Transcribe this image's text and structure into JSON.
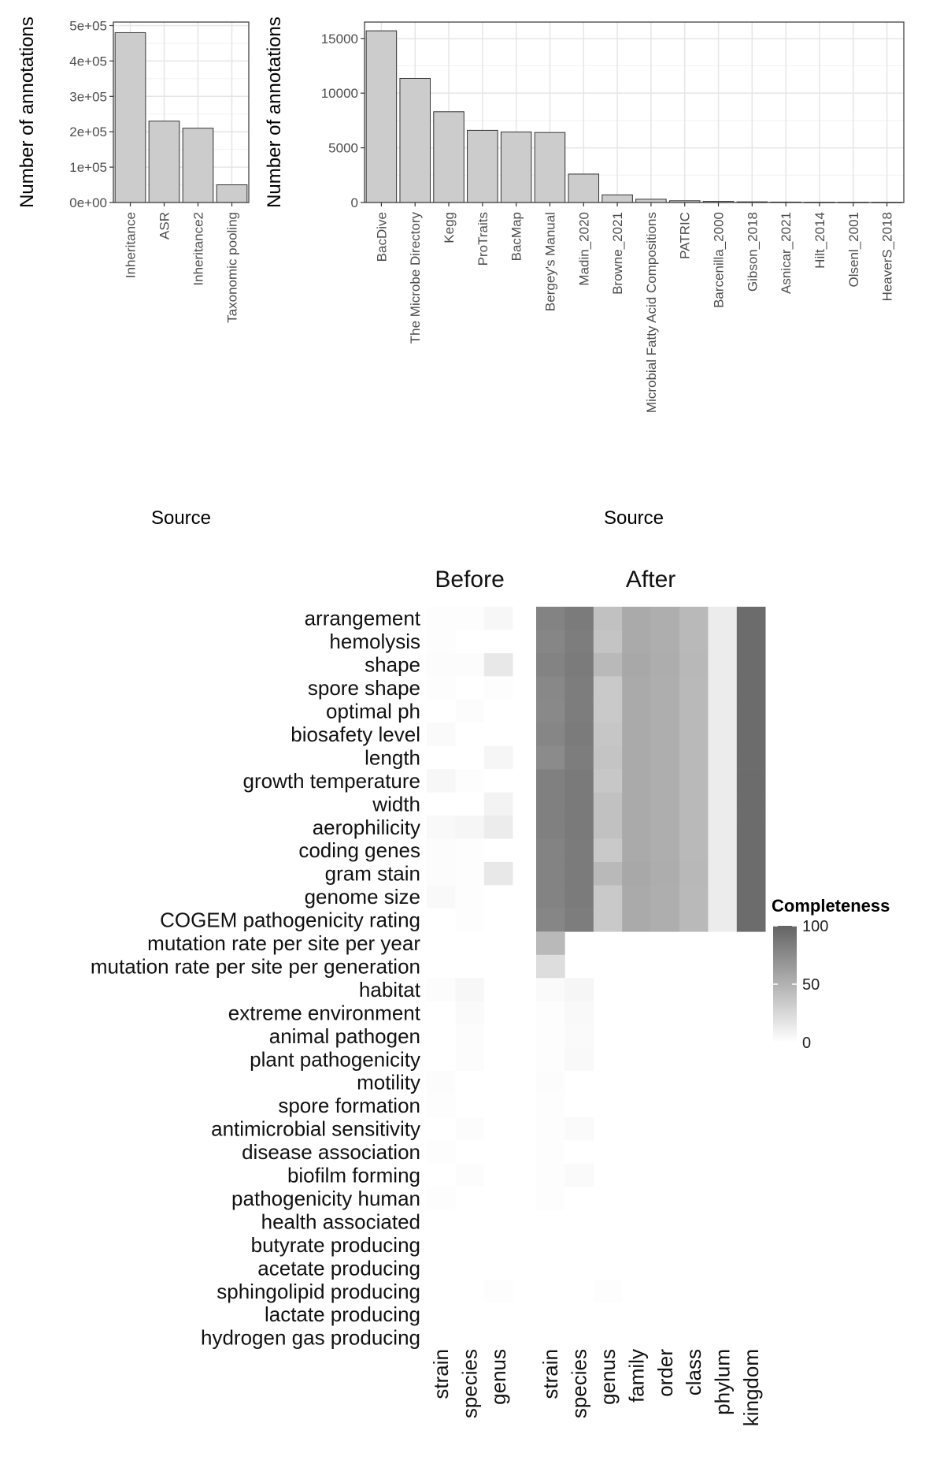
{
  "chart_data": [
    {
      "type": "bar",
      "ylabel": "Number of annotations",
      "xlabel": "Source",
      "categories": [
        "Inheritance",
        "ASR",
        "Inheritance2",
        "Taxonomic pooling"
      ],
      "values": [
        480000,
        230000,
        210000,
        50000
      ],
      "ylim": [
        0,
        510000
      ],
      "yticks": [
        0,
        100000,
        200000,
        300000,
        400000,
        500000
      ],
      "ytick_labels": [
        "0e+00",
        "1e+05",
        "2e+05",
        "3e+05",
        "4e+05",
        "5e+05"
      ],
      "grid": true,
      "bar_color": "#cccccc"
    },
    {
      "type": "bar",
      "ylabel": "Number of annotations",
      "xlabel": "Source",
      "categories": [
        "BacDive",
        "The Microbe Directory",
        "Kegg",
        "ProTraits",
        "BacMap",
        "Bergey's Manual",
        "Madin_2020",
        "Browne_2021",
        "Microbial Fatty Acid Compositions",
        "PATRIC",
        "Barcenilla_2000",
        "Gibson_2018",
        "Asnicar_2021",
        "Hilt_2014",
        "Olsenl_2001",
        "HeaverS_2018"
      ],
      "values": [
        15700,
        11350,
        8300,
        6600,
        6450,
        6400,
        2600,
        700,
        300,
        160,
        100,
        60,
        40,
        20,
        15,
        10
      ],
      "ylim": [
        0,
        16500
      ],
      "yticks": [
        0,
        5000,
        10000,
        15000
      ],
      "ytick_labels": [
        "0",
        "5000",
        "10000",
        "15000"
      ],
      "grid": true,
      "bar_color": "#cccccc"
    },
    {
      "type": "heatmap",
      "legend": {
        "title": "Completeness",
        "ticks": [
          0,
          50,
          100
        ],
        "tick_labels": [
          "0",
          "50",
          "100"
        ],
        "placement": "right"
      },
      "facets": [
        {
          "title": "Before",
          "columns": [
            "strain",
            "species",
            "genus"
          ]
        },
        {
          "title": "After",
          "columns": [
            "strain",
            "species",
            "genus",
            "family",
            "order",
            "class",
            "phylum",
            "kingdom"
          ]
        }
      ],
      "rows": [
        "arrangement",
        "hemolysis",
        "shape",
        "spore shape",
        "optimal ph",
        "biosafety level",
        "length",
        "growth temperature",
        "width",
        "aerophilicity",
        "coding genes",
        "gram stain",
        "genome size",
        "COGEM pathogenicity rating",
        "mutation rate per site per year",
        "mutation rate per site per generation",
        "habitat",
        "extreme environment",
        "animal pathogen",
        "plant pathogenicity",
        "motility",
        "spore formation",
        "antimicrobial sensitivity",
        "disease association",
        "biofilm forming",
        "pathogenicity human",
        "health associated",
        "butyrate producing",
        "acetate producing",
        "sphingolipid producing",
        "lactate producing",
        "hydrogen gas producing"
      ],
      "before": [
        [
          1,
          1,
          5
        ],
        [
          1,
          0,
          0
        ],
        [
          2,
          2,
          15
        ],
        [
          1,
          0,
          1
        ],
        [
          0,
          2,
          0
        ],
        [
          3,
          0,
          0
        ],
        [
          0,
          0,
          6
        ],
        [
          5,
          1,
          0
        ],
        [
          0,
          0,
          8
        ],
        [
          4,
          6,
          12
        ],
        [
          2,
          1,
          0
        ],
        [
          2,
          1,
          15
        ],
        [
          4,
          1,
          0
        ],
        [
          0,
          1,
          0
        ],
        [
          0,
          0,
          0
        ],
        [
          0,
          0,
          0
        ],
        [
          2,
          5,
          0
        ],
        [
          0,
          3,
          0
        ],
        [
          0,
          2,
          0
        ],
        [
          0,
          2,
          0
        ],
        [
          2,
          0,
          0
        ],
        [
          1,
          0,
          0
        ],
        [
          0,
          2,
          0
        ],
        [
          1,
          0,
          0
        ],
        [
          0,
          2,
          0
        ],
        [
          1,
          0,
          0
        ],
        [
          0,
          0,
          0
        ],
        [
          0,
          0,
          0
        ],
        [
          0,
          0,
          0
        ],
        [
          0,
          0,
          1
        ],
        [
          0,
          0,
          0
        ],
        [
          0,
          0,
          0
        ]
      ],
      "after": [
        [
          80,
          85,
          40,
          55,
          52,
          45,
          12,
          95
        ],
        [
          78,
          84,
          38,
          55,
          52,
          45,
          12,
          95
        ],
        [
          80,
          85,
          45,
          56,
          53,
          46,
          12,
          95
        ],
        [
          77,
          84,
          35,
          55,
          52,
          45,
          12,
          95
        ],
        [
          76,
          84,
          35,
          55,
          52,
          45,
          12,
          95
        ],
        [
          78,
          85,
          37,
          55,
          52,
          45,
          12,
          95
        ],
        [
          75,
          84,
          38,
          55,
          52,
          45,
          12,
          95
        ],
        [
          82,
          86,
          36,
          55,
          52,
          45,
          12,
          95
        ],
        [
          82,
          86,
          40,
          55,
          52,
          45,
          12,
          95
        ],
        [
          82,
          86,
          40,
          55,
          52,
          45,
          12,
          95
        ],
        [
          80,
          85,
          35,
          55,
          52,
          45,
          12,
          95
        ],
        [
          80,
          85,
          45,
          56,
          53,
          46,
          12,
          95
        ],
        [
          80,
          85,
          35,
          55,
          52,
          45,
          12,
          95
        ],
        [
          78,
          84,
          35,
          55,
          52,
          45,
          12,
          95
        ],
        [
          45,
          null,
          null,
          null,
          null,
          null,
          null,
          null
        ],
        [
          22,
          null,
          null,
          null,
          null,
          null,
          null,
          null
        ],
        [
          3,
          6,
          null,
          null,
          null,
          null,
          null,
          null
        ],
        [
          1,
          4,
          null,
          null,
          null,
          null,
          null,
          null
        ],
        [
          1,
          3,
          null,
          null,
          null,
          null,
          null,
          null
        ],
        [
          1,
          4,
          null,
          null,
          null,
          null,
          null,
          null
        ],
        [
          2,
          0,
          null,
          null,
          null,
          null,
          null,
          null
        ],
        [
          1,
          0,
          null,
          null,
          null,
          null,
          null,
          null
        ],
        [
          1,
          3,
          null,
          null,
          null,
          null,
          null,
          null
        ],
        [
          1,
          0,
          null,
          null,
          null,
          null,
          null,
          null
        ],
        [
          1,
          3,
          null,
          null,
          null,
          null,
          null,
          null
        ],
        [
          1,
          0,
          null,
          null,
          null,
          null,
          null,
          null
        ],
        [
          null,
          null,
          null,
          null,
          null,
          null,
          null,
          null
        ],
        [
          null,
          null,
          null,
          null,
          null,
          null,
          null,
          null
        ],
        [
          null,
          null,
          null,
          null,
          null,
          null,
          null,
          null
        ],
        [
          0,
          0,
          1,
          null,
          null,
          null,
          null,
          null
        ],
        [
          null,
          null,
          null,
          null,
          null,
          null,
          null,
          null
        ],
        [
          null,
          null,
          null,
          null,
          null,
          null,
          null,
          null
        ]
      ]
    }
  ]
}
